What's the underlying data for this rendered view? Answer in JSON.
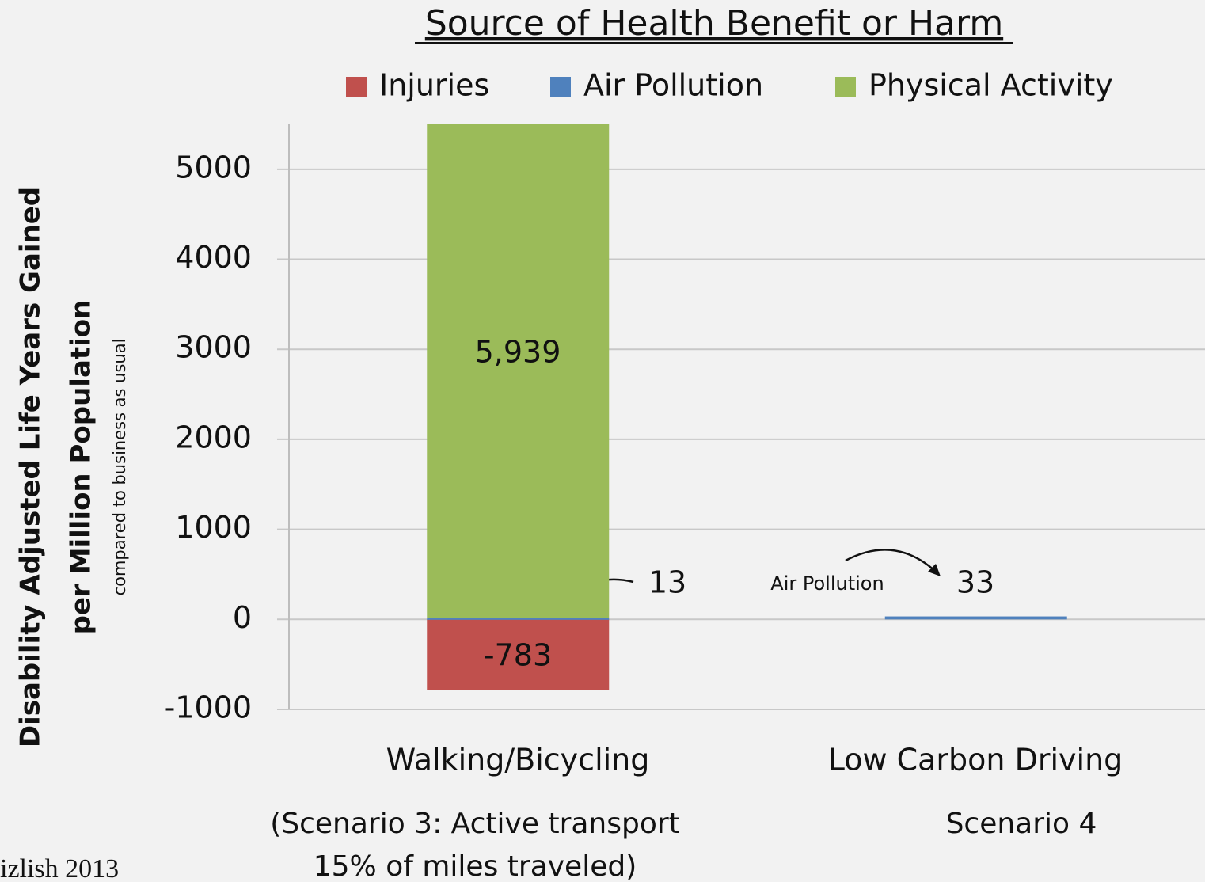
{
  "chart_data": {
    "type": "stacked_bar",
    "title": "Source of Health Benefit or Harm",
    "y_label": [
      "Disability Adjusted Life Years Gained",
      "per Million Population",
      "compared to business as usual"
    ],
    "categories": [
      "Walking/Bicycling",
      "Low Carbon Driving"
    ],
    "category_notes": [
      [
        "(Scenario 3: Active transport",
        "15% of miles traveled)"
      ],
      [
        "Scenario 4"
      ]
    ],
    "series": [
      {
        "name": "Injuries",
        "color": "#c0504d",
        "values": [
          -783,
          null
        ],
        "value_labels": [
          "-783",
          null
        ]
      },
      {
        "name": "Air Pollution",
        "color": "#4f81bd",
        "values": [
          13,
          33
        ],
        "value_labels": [
          "13",
          "33"
        ]
      },
      {
        "name": "Physical Activity",
        "color": "#9bbb59",
        "values": [
          5939,
          null
        ],
        "value_labels": [
          "5,939",
          null
        ]
      }
    ],
    "annotations": [
      "Air Pollution"
    ],
    "source": "izlish 2013",
    "ylim": [
      -1000,
      5500
    ],
    "yticks": [
      -1000,
      0,
      1000,
      2000,
      3000,
      4000,
      5000
    ],
    "grid": true,
    "legend": "top"
  }
}
